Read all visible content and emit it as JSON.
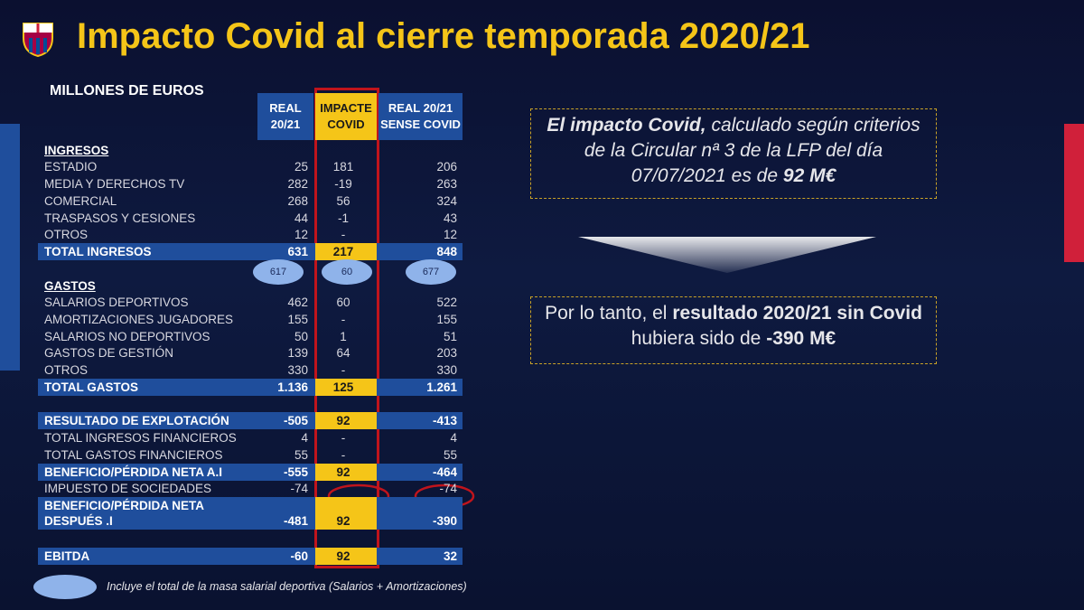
{
  "header": {
    "title": "Impacto Covid al cierre temporada 2020/21"
  },
  "table": {
    "unit": "MILLONES DE EUROS",
    "columns": [
      "REAL 20/21",
      "IMPACTE COVID",
      "REAL 20/21 SENSE COVID"
    ],
    "rows": [
      {
        "label": "INGRESOS"
      },
      {
        "label": "ESTADIO",
        "values": [
          "25",
          "181",
          "206"
        ]
      },
      {
        "label": "MEDIA Y DERECHOS TV",
        "values": [
          "282",
          "-19",
          "263"
        ]
      },
      {
        "label": "COMERCIAL",
        "values": [
          "268",
          "56",
          "324"
        ]
      },
      {
        "label": "TRASPASOS Y CESIONES",
        "values": [
          "44",
          "-1",
          "43"
        ]
      },
      {
        "label": "OTROS",
        "values": [
          "12",
          "-",
          "12"
        ]
      },
      {
        "label": "TOTAL INGRESOS",
        "values": [
          "631",
          "217",
          "848"
        ]
      },
      {
        "label": "GASTOS"
      },
      {
        "label": "SALARIOS DEPORTIVOS",
        "values": [
          "462",
          "60",
          "522"
        ]
      },
      {
        "label": "AMORTIZACIONES JUGADORES",
        "values": [
          "155",
          "-",
          "155"
        ]
      },
      {
        "label": "SALARIOS NO DEPORTIVOS",
        "values": [
          "50",
          "1",
          "51"
        ]
      },
      {
        "label": "GASTOS DE GESTIÓN",
        "values": [
          "139",
          "64",
          "203"
        ]
      },
      {
        "label": "OTROS",
        "values": [
          "330",
          "-",
          "330"
        ]
      },
      {
        "label": "TOTAL GASTOS",
        "values": [
          "1.136",
          "125",
          "1.261"
        ]
      },
      {
        "label": "RESULTADO DE EXPLOTACIÓN",
        "values": [
          "-505",
          "92",
          "-413"
        ]
      },
      {
        "label": "TOTAL INGRESOS FINANCIEROS",
        "values": [
          "4",
          "-",
          "4"
        ]
      },
      {
        "label": "TOTAL GASTOS FINANCIEROS",
        "values": [
          "55",
          "-",
          "55"
        ]
      },
      {
        "label": "BENEFICIO/PÉRDIDA NETA A.I",
        "values": [
          "-555",
          "92",
          "-464"
        ]
      },
      {
        "label": "IMPUESTO DE SOCIEDADES",
        "values": [
          "-74",
          null,
          "-74"
        ]
      },
      {
        "label": "BENEFICIO/PÉRDIDA NETA DESPUÉS .I",
        "values": [
          "-481",
          "92",
          "-390"
        ]
      },
      {
        "label": "EBITDA",
        "values": [
          "-60",
          "92",
          "32"
        ]
      }
    ],
    "bubbles": [
      "617",
      "60",
      "677"
    ]
  },
  "box1": {
    "bold1": "El impacto Covid,",
    "text": "calculado según criterios de la Circular nª 3 de la LFP del día 07/07/2021 es de",
    "bold2": "92 M€"
  },
  "box2": {
    "text1": "Por lo tanto, el",
    "bold1": "resultado 2020/21 sin Covid",
    "text2": "hubiera sido de",
    "bold2": "-390 M€"
  },
  "footnote": "Incluye el total de la masa salarial deportiva (Salarios + Amortizaciones)"
}
